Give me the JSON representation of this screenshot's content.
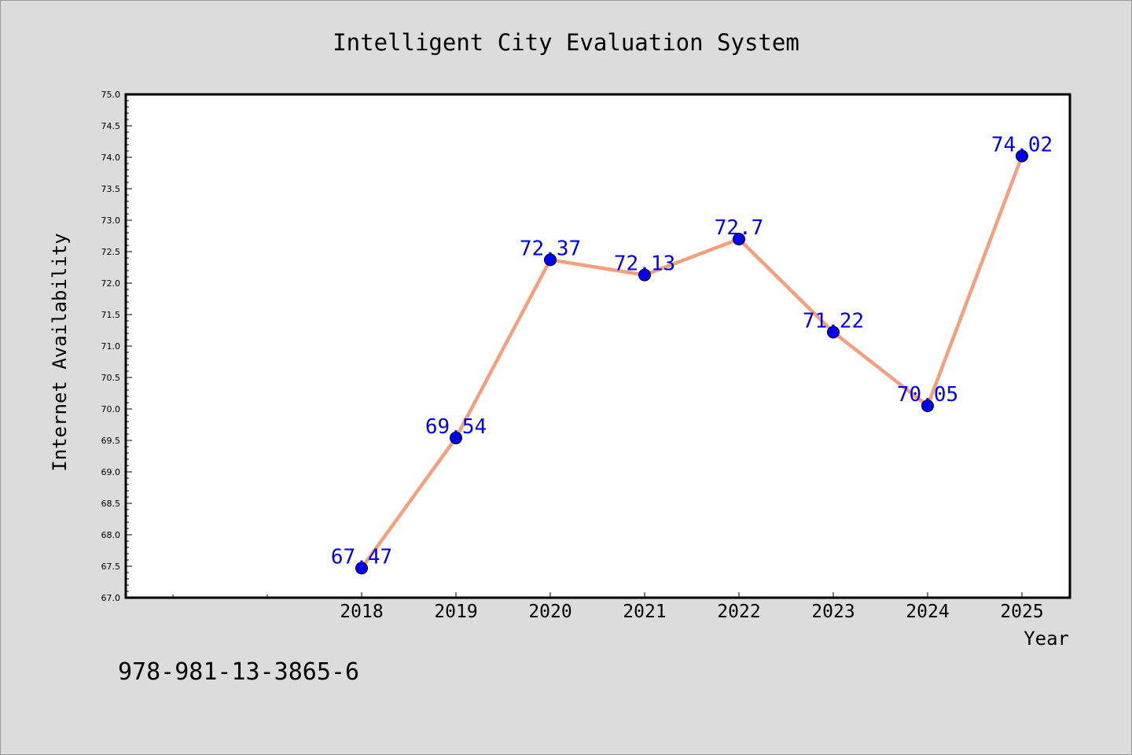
{
  "chart_data": {
    "type": "line",
    "title": "Intelligent City Evaluation System",
    "xlabel": "Year",
    "ylabel": "Internet Availability",
    "categories": [
      "2018",
      "2019",
      "2020",
      "2021",
      "2022",
      "2023",
      "2024",
      "2025"
    ],
    "series": [
      {
        "values": [
          67.47,
          69.54,
          72.37,
          72.13,
          72.7,
          71.22,
          70.05,
          74.02
        ]
      }
    ],
    "data_labels": [
      "67.47",
      "69.54",
      "72.37",
      "72.13",
      "72.7",
      "71.22",
      "70.05",
      "74.02"
    ],
    "ylim": [
      67.0,
      75.0
    ],
    "ytick_step": 0.5,
    "grid": false,
    "legend": false,
    "line_color": "#f4a07f",
    "marker_color": "#0000ee",
    "label_color": "#0000ee",
    "background_color": "#dcdcdc",
    "plot_background": "#ffffff"
  },
  "footer_text": "978-981-13-3865-6"
}
